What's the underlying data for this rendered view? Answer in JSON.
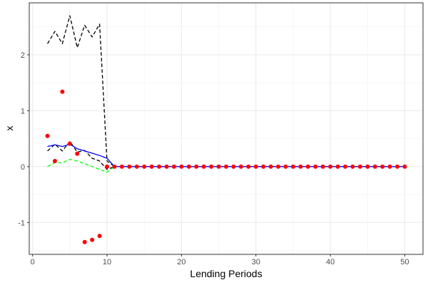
{
  "chart_data": {
    "type": "line",
    "title": "",
    "xlabel": "Lending Periods",
    "ylabel": "x",
    "xlim": [
      -0.45,
      52.45
    ],
    "ylim": [
      -1.57,
      2.93
    ],
    "x_ticks": [
      0,
      10,
      20,
      30,
      40,
      50
    ],
    "y_ticks": [
      -1,
      0,
      1,
      2
    ],
    "grid": true,
    "legend": "none",
    "series": [
      {
        "kind": "dashed-line",
        "color": "#000000",
        "x": [
          2,
          3,
          4,
          5,
          6,
          7,
          8,
          9,
          10,
          11
        ],
        "y": [
          2.2,
          2.42,
          2.2,
          2.7,
          2.13,
          2.53,
          2.32,
          2.55,
          0.1,
          0
        ]
      },
      {
        "kind": "dashed-line",
        "color": "#000000",
        "x": [
          2,
          3,
          4,
          5,
          6,
          7,
          8,
          9,
          10,
          11
        ],
        "y": [
          0.28,
          0.4,
          0.28,
          0.45,
          0.26,
          0.29,
          0.15,
          0.1,
          -0.05,
          0
        ]
      },
      {
        "kind": "solid-line",
        "color": "#0000ff",
        "x": [
          2,
          3,
          4,
          5,
          6,
          7,
          8,
          9,
          10,
          11,
          12,
          13,
          14,
          15,
          16,
          17,
          18,
          19,
          20,
          21,
          22,
          23,
          24,
          25,
          26,
          27,
          28,
          29,
          30,
          31,
          32,
          33,
          34,
          35,
          36,
          37,
          38,
          39,
          40,
          41,
          42,
          43,
          44,
          45,
          46,
          47,
          48,
          49,
          50
        ],
        "y": [
          0.36,
          0.39,
          0.36,
          0.4,
          0.32,
          0.28,
          0.24,
          0.2,
          0.15,
          0,
          0,
          0,
          0,
          0,
          0,
          0,
          0,
          0,
          0,
          0,
          0,
          0,
          0,
          0,
          0,
          0,
          0,
          0,
          0,
          0,
          0,
          0,
          0,
          0,
          0,
          0,
          0,
          0,
          0,
          0,
          0,
          0,
          0,
          0,
          0,
          0,
          0,
          0,
          0
        ]
      },
      {
        "kind": "dashed-line",
        "color": "#00ff00",
        "x": [
          2,
          3,
          4,
          5,
          6,
          7,
          8,
          9,
          10,
          11
        ],
        "y": [
          0.0,
          0.07,
          0.07,
          0.13,
          0.1,
          0.05,
          0.0,
          -0.05,
          -0.1,
          0
        ]
      },
      {
        "kind": "points",
        "color": "#ff0000",
        "x": [
          2,
          3,
          4,
          5,
          6,
          7,
          8,
          9,
          10,
          11,
          12,
          13,
          14,
          15,
          16,
          17,
          18,
          19,
          20,
          21,
          22,
          23,
          24,
          25,
          26,
          27,
          28,
          29,
          30,
          31,
          32,
          33,
          34,
          35,
          36,
          37,
          38,
          39,
          40,
          41,
          42,
          43,
          44,
          45,
          46,
          47,
          48,
          49,
          50
        ],
        "y": [
          0.55,
          0.1,
          1.34,
          0.41,
          0.23,
          -1.35,
          -1.31,
          -1.24,
          0.0,
          0,
          0,
          0,
          0,
          0,
          0,
          0,
          0,
          0,
          0,
          0,
          0,
          0,
          0,
          0,
          0,
          0,
          0,
          0,
          0,
          0,
          0,
          0,
          0,
          0,
          0,
          0,
          0,
          0,
          0,
          0,
          0,
          0,
          0,
          0,
          0,
          0,
          0,
          0,
          0
        ]
      }
    ]
  }
}
